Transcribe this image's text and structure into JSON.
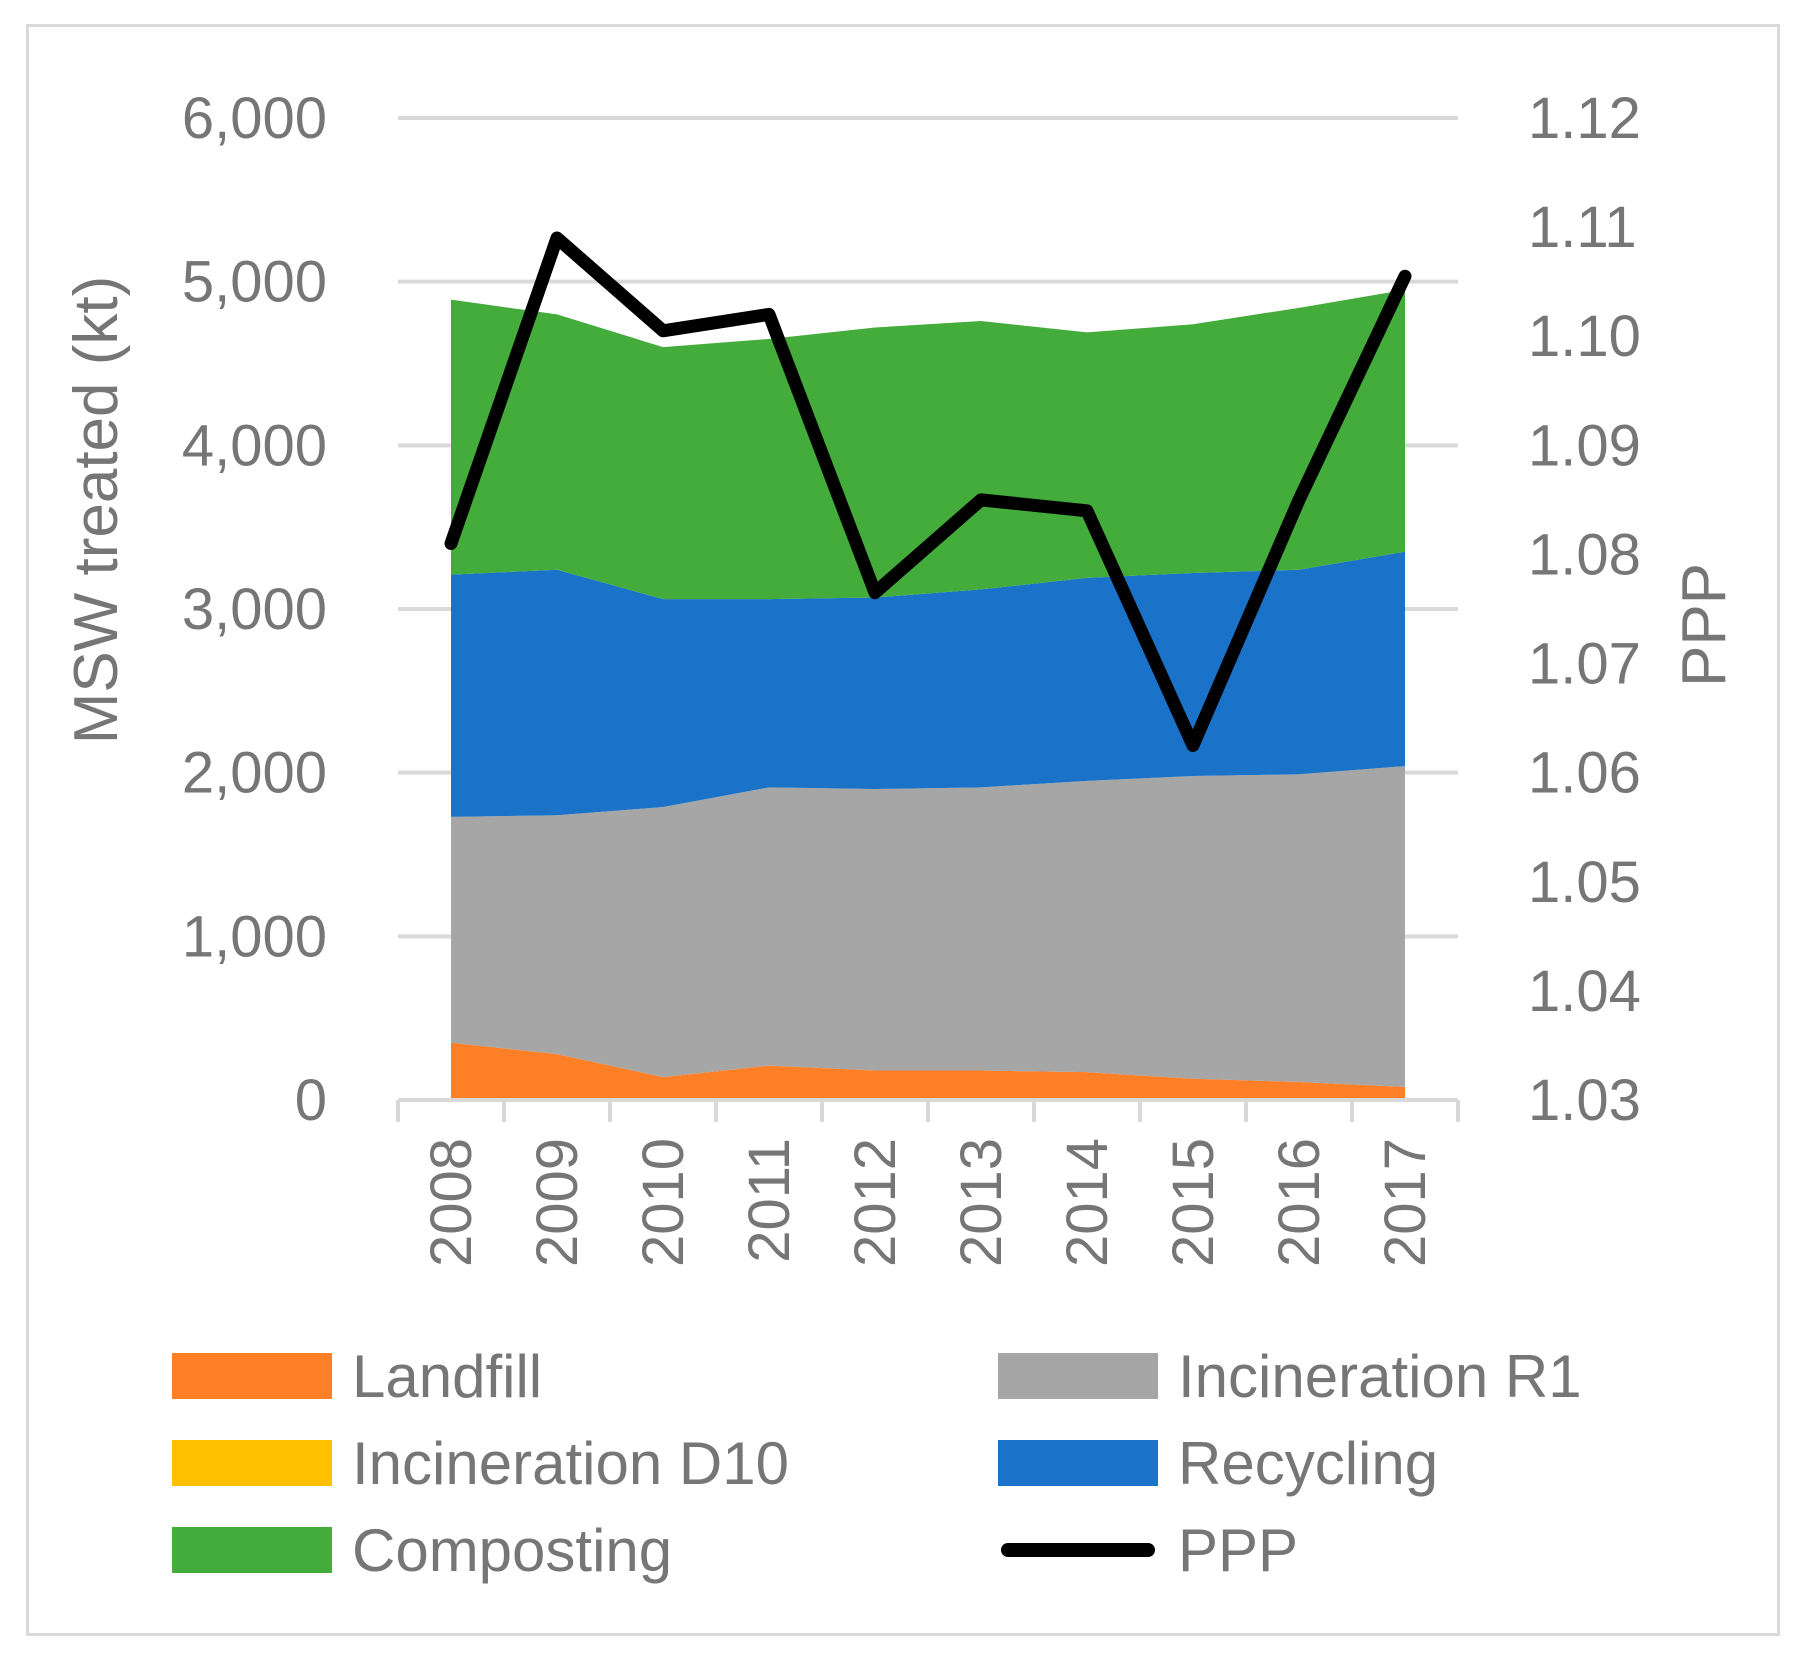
{
  "chart_data": {
    "type": "area",
    "stacked": true,
    "categories": [
      "2008",
      "2009",
      "2010",
      "2011",
      "2012",
      "2013",
      "2014",
      "2015",
      "2016",
      "2017"
    ],
    "series": [
      {
        "name": "Landfill",
        "axis": "left",
        "color": "#FF7F27",
        "values": [
          350,
          280,
          140,
          210,
          180,
          180,
          170,
          130,
          110,
          80
        ]
      },
      {
        "name": "Incineration D10",
        "axis": "left",
        "color": "#FFC000",
        "values": [
          0,
          0,
          0,
          0,
          0,
          0,
          0,
          0,
          0,
          0
        ]
      },
      {
        "name": "Incineration R1",
        "axis": "left",
        "color": "#A6A6A6",
        "values": [
          1380,
          1460,
          1650,
          1700,
          1720,
          1730,
          1780,
          1850,
          1880,
          1960
        ]
      },
      {
        "name": "Recycling",
        "axis": "left",
        "color": "#1A73C8",
        "values": [
          1480,
          1500,
          1270,
          1150,
          1170,
          1210,
          1240,
          1240,
          1250,
          1310
        ]
      },
      {
        "name": "Composting",
        "axis": "left",
        "color": "#43AC3A",
        "values": [
          1680,
          1560,
          1540,
          1590,
          1650,
          1640,
          1500,
          1520,
          1600,
          1600
        ]
      },
      {
        "name": "PPP",
        "axis": "right",
        "type": "line",
        "color": "#000000",
        "values": [
          1.081,
          1.109,
          1.1005,
          1.102,
          1.0765,
          1.085,
          1.084,
          1.0625,
          1.085,
          1.1055
        ]
      }
    ],
    "ylabel": "MSW treated (kt)",
    "y2label": "PPP",
    "ylim": [
      0,
      6000
    ],
    "y2lim": [
      1.03,
      1.12
    ],
    "yticks": [
      "0",
      "1,000",
      "2,000",
      "3,000",
      "4,000",
      "5,000",
      "6,000"
    ],
    "y2ticks": [
      "1.03",
      "1.04",
      "1.05",
      "1.06",
      "1.07",
      "1.08",
      "1.09",
      "1.10",
      "1.11",
      "1.12"
    ],
    "grid": true,
    "legend_position": "bottom",
    "legend": [
      "Landfill",
      "Incineration R1",
      "Incineration D10",
      "Recycling",
      "Composting",
      "PPP"
    ]
  }
}
